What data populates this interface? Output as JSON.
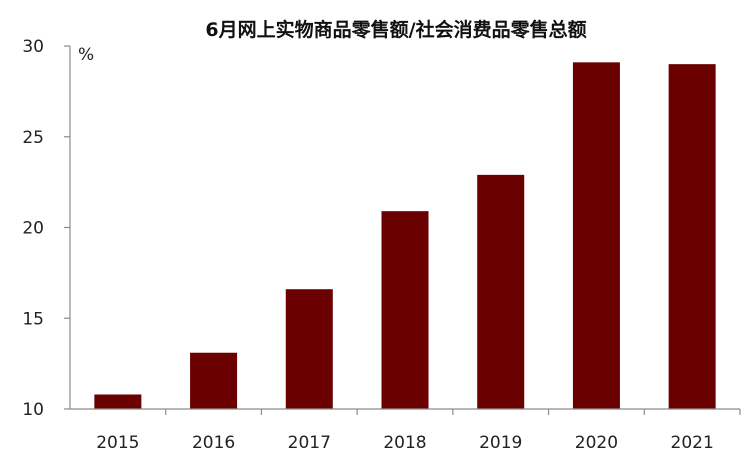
{
  "chart_data": {
    "type": "bar",
    "title": "6月网上实物商品零售额/社会消费品零售总额",
    "ylabel": "%",
    "xlabel": "",
    "categories": [
      "2015",
      "2016",
      "2017",
      "2018",
      "2019",
      "2020",
      "2021"
    ],
    "values": [
      10.8,
      13.1,
      16.6,
      20.9,
      22.9,
      29.1,
      29.0
    ],
    "ylim": [
      10,
      30
    ],
    "yticks": [
      "10",
      "15",
      "20",
      "25",
      "30"
    ],
    "grid": false,
    "legend": "none",
    "bar_color": "#6b0000"
  }
}
